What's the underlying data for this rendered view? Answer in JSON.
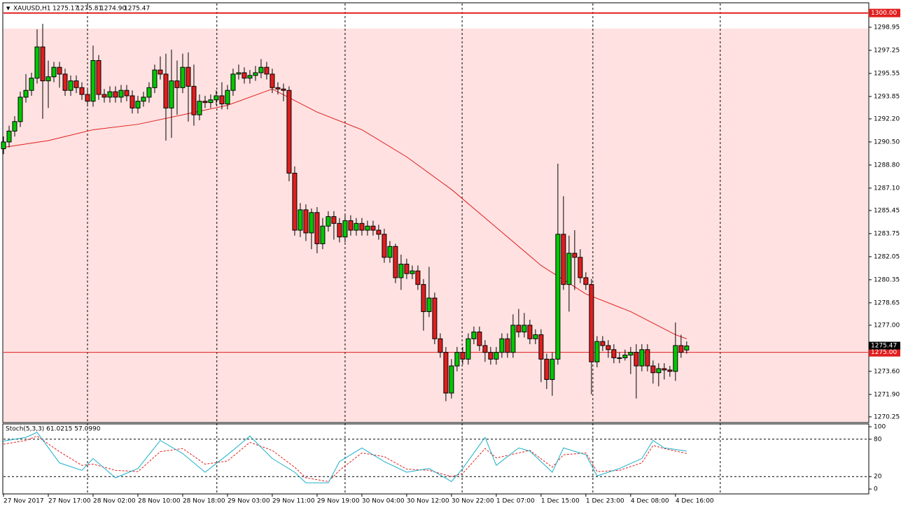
{
  "chart_data": {
    "type": "candlestick",
    "title": "XAUUSD,H1",
    "header_values": [
      "1275.17",
      "1275.81",
      "1274.90",
      "1275.47"
    ],
    "up_color": "#00c800",
    "down_color": "#e01e1e",
    "outline_color": "#000000",
    "ma_color": "#e01e1e",
    "k_color": "#1ab0c8",
    "d_color": "#e01e1e",
    "zone_color": "#ffe1e1",
    "open": [
      1290.0,
      1290.5,
      1291.3,
      1292.0,
      1293.8,
      1294.3,
      1295.2,
      1297.5,
      1295.0,
      1295.3,
      1296.0,
      1295.5,
      1294.3,
      1295.0,
      1294.5,
      1294.0,
      1293.5,
      1296.5,
      1294.0,
      1293.8,
      1294.2,
      1293.8,
      1294.3,
      1293.9,
      1293.0,
      1293.5,
      1293.8,
      1294.5,
      1295.8,
      1295.5,
      1293.0,
      1295.0,
      1294.5,
      1296.0,
      1294.6,
      1292.5,
      1293.5,
      1293.4,
      1293.6,
      1293.9,
      1293.3,
      1294.3,
      1295.5,
      1295.6,
      1295.2,
      1295.4,
      1295.6,
      1296.0,
      1295.5,
      1294.5,
      1294.4,
      1294.3,
      1288.2,
      1284.0,
      1285.5,
      1283.8,
      1285.3,
      1283.0,
      1284.3,
      1285.0,
      1284.5,
      1283.5,
      1284.7,
      1284.0,
      1284.5,
      1284.0,
      1284.3,
      1284.0,
      1283.7,
      1282.0,
      1282.8,
      1280.5,
      1281.5,
      1280.8,
      1281.0,
      1280.0,
      1278.0,
      1279.0,
      1276.0,
      1275.0,
      1272.0,
      1274.0,
      1275.0,
      1274.5,
      1276.0,
      1276.5,
      1275.5,
      1275.0,
      1274.5,
      1275.0,
      1276.0,
      1275.0,
      1277.0,
      1276.5,
      1277.0,
      1276.0,
      1276.3,
      1274.5,
      1273.0,
      1274.5,
      1283.7,
      1280.0,
      1282.3,
      1282.0,
      1280.5,
      1280.0,
      1274.3,
      1275.8,
      1275.5,
      1275.2,
      1274.6,
      1274.6,
      1274.8,
      1275.0,
      1274.0,
      1275.2,
      1274.0,
      1273.5,
      1273.8,
      1273.7,
      1273.6,
      1275.5,
      1275.17
    ],
    "high": [
      1290.9,
      1291.7,
      1292.4,
      1294.2,
      1295.5,
      1295.6,
      1298.8,
      1299.2,
      1296.5,
      1296.4,
      1296.4,
      1295.9,
      1295.4,
      1295.4,
      1294.9,
      1294.4,
      1297.6,
      1296.9,
      1294.4,
      1294.6,
      1294.6,
      1294.7,
      1294.7,
      1294.3,
      1293.9,
      1294.2,
      1294.9,
      1296.2,
      1296.8,
      1297.0,
      1297.3,
      1296.5,
      1297.0,
      1297.1,
      1296.2,
      1294.0,
      1293.9,
      1294.0,
      1294.3,
      1294.9,
      1294.7,
      1295.9,
      1296.2,
      1296.0,
      1295.8,
      1296.1,
      1296.6,
      1296.4,
      1295.9,
      1294.9,
      1294.8,
      1294.6,
      1288.7,
      1286.0,
      1285.9,
      1285.6,
      1285.7,
      1284.9,
      1285.4,
      1285.4,
      1284.9,
      1285.1,
      1285.1,
      1284.9,
      1284.9,
      1284.7,
      1284.7,
      1284.4,
      1284.1,
      1283.2,
      1283.0,
      1282.2,
      1281.9,
      1281.4,
      1281.4,
      1280.4,
      1281.3,
      1279.4,
      1276.4,
      1275.4,
      1274.5,
      1275.4,
      1275.4,
      1276.4,
      1276.9,
      1276.9,
      1275.9,
      1275.4,
      1275.4,
      1276.4,
      1276.4,
      1277.8,
      1278.2,
      1277.9,
      1277.4,
      1276.7,
      1276.7,
      1274.9,
      1275.0,
      1288.9,
      1286.5,
      1283.6,
      1284.0,
      1282.6,
      1280.9,
      1280.4,
      1276.2,
      1276.2,
      1275.9,
      1275.6,
      1275.0,
      1275.2,
      1275.4,
      1275.6,
      1275.6,
      1275.6,
      1274.4,
      1274.2,
      1274.2,
      1274.0,
      1277.2,
      1276.3,
      1275.81
    ],
    "low": [
      1289.6,
      1290.1,
      1290.9,
      1291.6,
      1293.4,
      1293.9,
      1294.8,
      1292.2,
      1293.0,
      1294.9,
      1294.5,
      1293.9,
      1293.9,
      1294.1,
      1293.6,
      1293.1,
      1293.1,
      1293.6,
      1293.4,
      1293.4,
      1293.4,
      1293.4,
      1293.5,
      1292.6,
      1292.6,
      1293.1,
      1293.4,
      1294.1,
      1295.1,
      1290.6,
      1290.8,
      1292.5,
      1294.1,
      1292.0,
      1291.7,
      1292.1,
      1293.0,
      1293.0,
      1293.2,
      1292.9,
      1292.9,
      1293.9,
      1295.1,
      1294.8,
      1294.8,
      1295.0,
      1295.2,
      1295.1,
      1294.1,
      1294.0,
      1293.5,
      1287.6,
      1283.6,
      1283.5,
      1283.2,
      1282.6,
      1282.3,
      1282.6,
      1283.9,
      1283.3,
      1283.1,
      1283.1,
      1283.6,
      1283.6,
      1283.6,
      1283.6,
      1283.6,
      1283.3,
      1281.6,
      1281.6,
      1280.1,
      1279.6,
      1280.4,
      1280.4,
      1279.6,
      1276.6,
      1277.6,
      1275.6,
      1274.6,
      1271.4,
      1271.6,
      1273.6,
      1274.1,
      1274.1,
      1275.6,
      1275.1,
      1274.3,
      1274.1,
      1274.1,
      1274.6,
      1274.6,
      1274.6,
      1276.1,
      1276.1,
      1275.6,
      1275.6,
      1272.8,
      1272.3,
      1271.8,
      1274.1,
      1279.6,
      1278.0,
      1279.6,
      1280.1,
      1279.6,
      1271.9,
      1273.9,
      1275.1,
      1274.6,
      1274.2,
      1274.2,
      1274.4,
      1273.4,
      1271.6,
      1273.6,
      1273.6,
      1272.7,
      1272.5,
      1273.0,
      1273.2,
      1272.9,
      1274.6,
      1274.9
    ],
    "close": [
      1290.5,
      1291.3,
      1292.0,
      1293.8,
      1294.3,
      1295.2,
      1297.5,
      1295.0,
      1295.3,
      1296.0,
      1295.5,
      1294.3,
      1295.0,
      1294.5,
      1294.0,
      1293.5,
      1296.5,
      1294.0,
      1293.8,
      1294.2,
      1293.8,
      1294.3,
      1293.9,
      1293.0,
      1293.5,
      1293.8,
      1294.5,
      1295.8,
      1295.5,
      1293.0,
      1295.0,
      1294.5,
      1296.0,
      1294.6,
      1292.5,
      1293.5,
      1293.4,
      1293.6,
      1293.9,
      1293.3,
      1294.3,
      1295.5,
      1295.6,
      1295.2,
      1295.4,
      1295.6,
      1296.0,
      1295.5,
      1294.5,
      1294.4,
      1294.3,
      1288.2,
      1284.0,
      1285.5,
      1283.8,
      1285.3,
      1283.0,
      1284.3,
      1285.0,
      1284.5,
      1283.5,
      1284.7,
      1284.0,
      1284.5,
      1284.0,
      1284.3,
      1284.0,
      1283.7,
      1282.0,
      1282.8,
      1280.5,
      1281.5,
      1280.8,
      1281.0,
      1280.0,
      1278.0,
      1279.0,
      1276.0,
      1275.0,
      1272.0,
      1274.0,
      1275.0,
      1274.5,
      1276.0,
      1276.5,
      1275.5,
      1275.0,
      1274.5,
      1275.0,
      1276.0,
      1275.0,
      1277.0,
      1276.5,
      1277.0,
      1276.0,
      1276.3,
      1274.5,
      1273.0,
      1274.5,
      1283.7,
      1280.0,
      1282.3,
      1282.0,
      1280.5,
      1280.0,
      1274.3,
      1275.8,
      1275.5,
      1275.2,
      1274.6,
      1274.6,
      1274.8,
      1275.0,
      1274.0,
      1275.2,
      1274.0,
      1273.5,
      1273.8,
      1273.7,
      1273.6,
      1275.5,
      1275.0,
      1275.47
    ],
    "ma": {
      "x": [
        0,
        8,
        16,
        24,
        32,
        40,
        48,
        56,
        64,
        72,
        80,
        88,
        96,
        104,
        112,
        120,
        122
      ],
      "values": [
        1290.1,
        1290.6,
        1291.4,
        1291.8,
        1292.5,
        1293.2,
        1294.4,
        1292.7,
        1291.4,
        1289.4,
        1287.0,
        1284.2,
        1281.4,
        1279.3,
        1278.0,
        1276.3,
        1276.0
      ]
    },
    "xlim": [
      0,
      154.4
    ],
    "ylim": [
      1269.88,
      1300.7
    ],
    "zone": [
      1269.88,
      1298.85
    ],
    "yticks": [
      {
        "value": 1298.95,
        "label": "1298.95"
      },
      {
        "value": 1297.25,
        "label": "1297.25"
      },
      {
        "value": 1295.55,
        "label": "1295.55"
      },
      {
        "value": 1293.85,
        "label": "1293.85"
      },
      {
        "value": 1292.2,
        "label": "1292.20"
      },
      {
        "value": 1290.5,
        "label": "1290.50"
      },
      {
        "value": 1288.8,
        "label": "1288.80"
      },
      {
        "value": 1287.1,
        "label": "1287.10"
      },
      {
        "value": 1285.45,
        "label": "1285.45"
      },
      {
        "value": 1283.75,
        "label": "1283.75"
      },
      {
        "value": 1282.05,
        "label": "1282.05"
      },
      {
        "value": 1280.35,
        "label": "1280.35"
      },
      {
        "value": 1278.65,
        "label": "1278.65"
      },
      {
        "value": 1277.0,
        "label": "1277.00"
      },
      {
        "value": 1273.6,
        "label": "1273.60"
      },
      {
        "value": 1271.9,
        "label": "1271.90"
      },
      {
        "value": 1270.25,
        "label": "1270.25"
      }
    ],
    "levels": [
      {
        "value": 1300,
        "label": "1300.00"
      },
      {
        "value": 1275,
        "label": "1275.00"
      }
    ],
    "separators": [
      15,
      38.1,
      61,
      81.9,
      105.25,
      128
    ],
    "xticks": [
      {
        "value": 0,
        "label": "27 Nov 2017"
      },
      {
        "value": 8,
        "label": "27 Nov 17:00"
      },
      {
        "value": 16,
        "label": "28 Nov 02:00"
      },
      {
        "value": 24,
        "label": "28 Nov 10:00"
      },
      {
        "value": 32,
        "label": "28 Nov 18:00"
      },
      {
        "value": 40,
        "label": "29 Nov 03:00"
      },
      {
        "value": 48,
        "label": "29 Nov 11:00"
      },
      {
        "value": 56,
        "label": "29 Nov 19:00"
      },
      {
        "value": 64,
        "label": "30 Nov 04:00"
      },
      {
        "value": 72,
        "label": "30 Nov 12:00"
      },
      {
        "value": 80,
        "label": "30 Nov 22:00"
      },
      {
        "value": 88,
        "label": "1 Dec 07:00"
      },
      {
        "value": 96,
        "label": "1 Dec 15:00"
      },
      {
        "value": 104,
        "label": "1 Dec 23:00"
      },
      {
        "value": 112,
        "label": "4 Dec 08:00"
      },
      {
        "value": 120,
        "label": "4 Dec 16:00"
      }
    ],
    "stoch": {
      "legend": "Stoch(5,3,3) 61.0215 57.0990",
      "x": [
        0,
        4,
        6,
        10,
        14,
        16,
        20,
        24,
        28,
        32,
        36,
        40,
        44,
        48,
        52,
        54,
        58,
        60,
        64,
        68,
        72,
        76,
        80,
        82,
        86,
        88,
        92,
        94,
        98,
        100,
        104,
        106,
        110,
        114,
        116,
        118,
        122
      ],
      "k": [
        77,
        83,
        91,
        42,
        30,
        49,
        18,
        33,
        78,
        57,
        27,
        55,
        85,
        49,
        27,
        10,
        10,
        44,
        66,
        44,
        27,
        33,
        12,
        33,
        83,
        38,
        66,
        61,
        27,
        66,
        55,
        21,
        33,
        49,
        78,
        66,
        61.0215
      ],
      "d": [
        72,
        78,
        85,
        60,
        38,
        40,
        30,
        28,
        60,
        65,
        40,
        45,
        75,
        62,
        35,
        18,
        12,
        30,
        58,
        52,
        32,
        30,
        20,
        25,
        65,
        50,
        58,
        62,
        35,
        55,
        58,
        28,
        30,
        42,
        70,
        65,
        57.099
      ],
      "ylim": [
        -6.7,
        104.5
      ],
      "yticks": [
        100,
        80,
        20,
        0
      ],
      "levels": [
        80,
        20
      ]
    }
  }
}
